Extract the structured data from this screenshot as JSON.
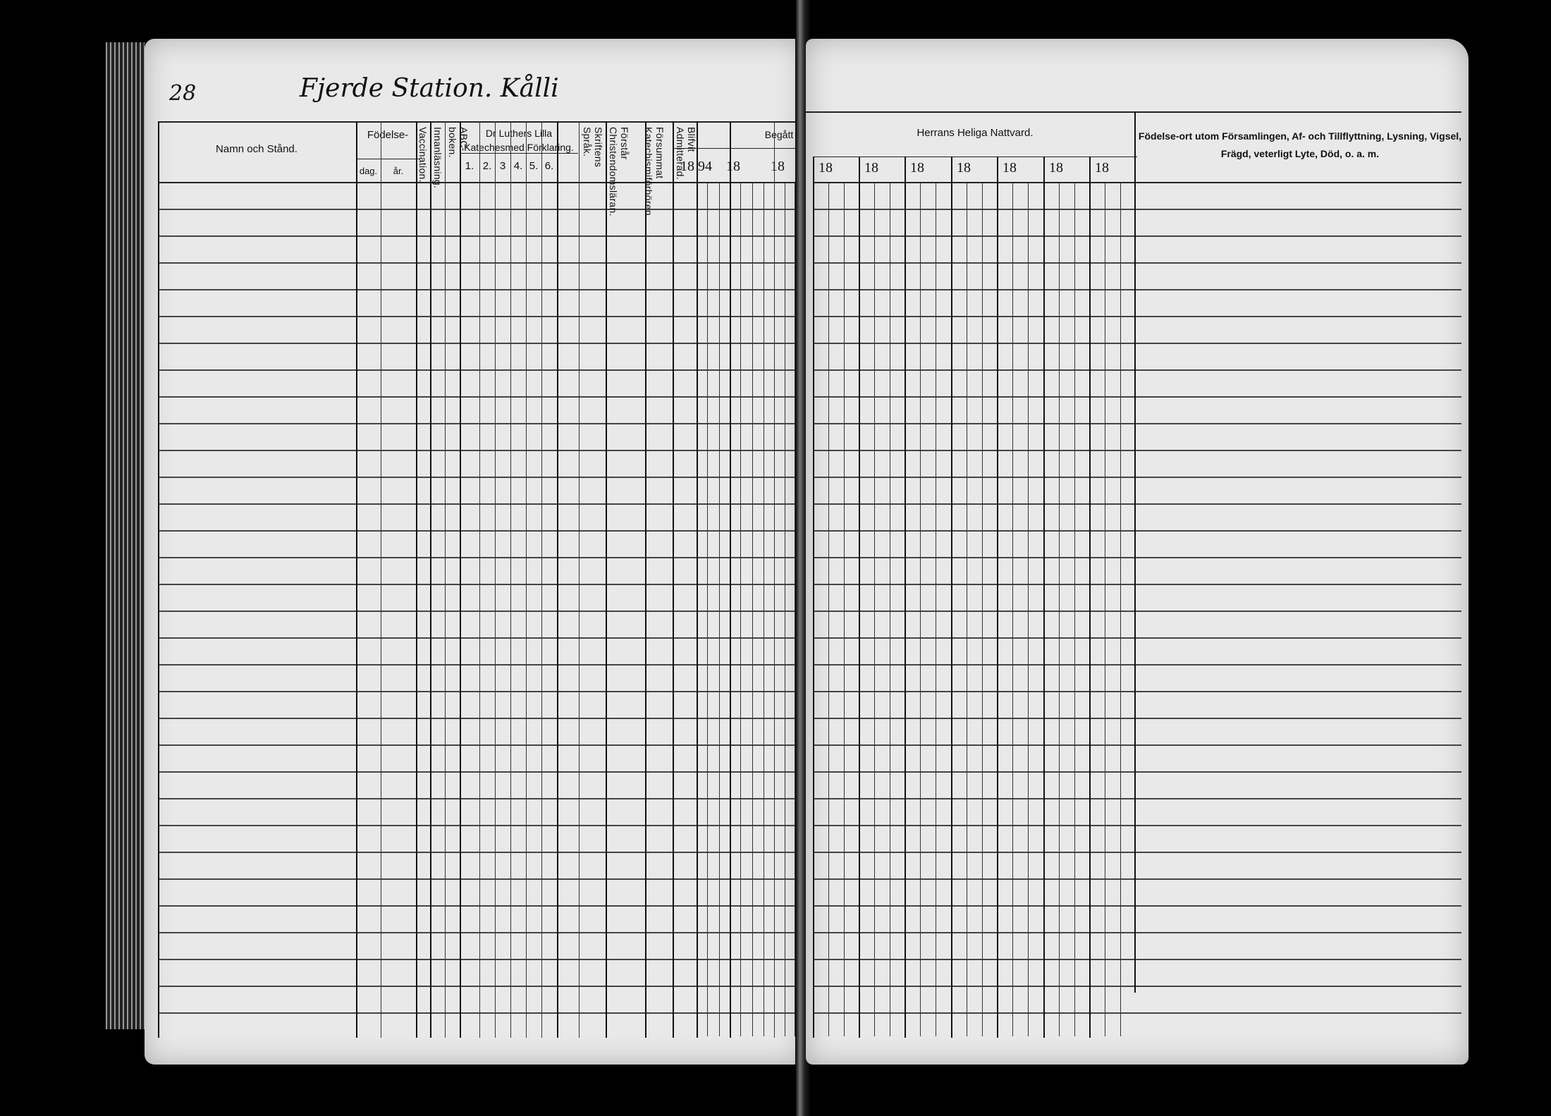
{
  "left_page": {
    "page_number": "28",
    "handwritten_heading": "Fjerde Station. Kålli",
    "columns": {
      "name": "Namn och Stånd.",
      "birth": "Födelse-",
      "birth_day": "dag.",
      "birth_year": "år.",
      "vaccination": "Vaccination.",
      "reading": "Innanläsning.",
      "abc_book": "ABC-boken.",
      "catechism": "Dr Luthers Lilla Katechesmed Förklaring.",
      "catechism_parts": [
        "1.",
        "2.",
        "3",
        "4.",
        "5.",
        "6."
      ],
      "scripture": "Skriftens Språk.",
      "understands": "Förstår Christendomsläran.",
      "neglected": "Försummat Katechismiförhören.",
      "admitted": "Blifvit Admitterad.",
      "begatt": "Begått",
      "begatt_years": [
        "18 94",
        "18",
        "18"
      ]
    }
  },
  "right_page": {
    "communion": "Herrans Heliga Nattvard.",
    "communion_years": [
      "18",
      "18",
      "18",
      "18",
      "18",
      "18",
      "18"
    ],
    "remarks_line1": "Födelse-ort utom Församlingen, Af- och Tillflyttning, Lysning, Vigsel,",
    "remarks_line2": "Frägd, veterligt Lyte, Död, o. a. m."
  }
}
